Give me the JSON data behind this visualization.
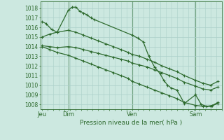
{
  "bg_color": "#cce8e0",
  "grid_color": "#aacfc8",
  "line_color": "#2d6a2d",
  "marker_color": "#2d6a2d",
  "title": "Pression niveau de la mer( hPa )",
  "ylim": [
    1007.5,
    1018.7
  ],
  "yticks": [
    1008,
    1009,
    1010,
    1011,
    1012,
    1013,
    1014,
    1015,
    1016,
    1017,
    1018
  ],
  "day_ticks": [
    0,
    14,
    48,
    82
  ],
  "day_labels": [
    "Jeu",
    "Dim",
    "Ven",
    "Sam"
  ],
  "day_lines": [
    14,
    48,
    82
  ],
  "xlim": [
    -1,
    96
  ],
  "series1": {
    "x": [
      0,
      2,
      5,
      8,
      14,
      16,
      18,
      20,
      22,
      24,
      26,
      28,
      48,
      51,
      54,
      57,
      60,
      63,
      65,
      67,
      69,
      72,
      76,
      82,
      85,
      88,
      91,
      94
    ],
    "y": [
      1016.6,
      1016.4,
      1015.8,
      1015.5,
      1017.8,
      1018.1,
      1018.1,
      1017.7,
      1017.5,
      1017.3,
      1017.0,
      1016.8,
      1015.2,
      1014.9,
      1014.5,
      1013.0,
      1011.9,
      1011.2,
      1010.5,
      1010.0,
      1009.7,
      1009.5,
      1008.1,
      1009.0,
      1008.0,
      1007.8,
      1007.9,
      1008.2
    ]
  },
  "series2": {
    "x": [
      0,
      4,
      8,
      14,
      18,
      22,
      26,
      30,
      34,
      38,
      42,
      46,
      48,
      52,
      56,
      60,
      64,
      68,
      72,
      76,
      82,
      86,
      90,
      94
    ],
    "y": [
      1015.0,
      1015.3,
      1015.5,
      1015.7,
      1015.5,
      1015.2,
      1014.9,
      1014.6,
      1014.3,
      1014.0,
      1013.7,
      1013.4,
      1013.2,
      1013.0,
      1012.7,
      1012.4,
      1012.0,
      1011.7,
      1011.4,
      1011.0,
      1010.5,
      1010.2,
      1010.0,
      1010.4
    ]
  },
  "series3": {
    "x": [
      0,
      4,
      8,
      14,
      18,
      22,
      26,
      30,
      34,
      38,
      42,
      46,
      48,
      52,
      56,
      60,
      64,
      68,
      72,
      76,
      82,
      86,
      90,
      94
    ],
    "y": [
      1014.1,
      1014.0,
      1013.9,
      1014.0,
      1013.9,
      1013.7,
      1013.5,
      1013.3,
      1013.1,
      1012.9,
      1012.7,
      1012.5,
      1012.3,
      1012.1,
      1011.9,
      1011.6,
      1011.3,
      1011.0,
      1010.7,
      1010.3,
      1009.9,
      1009.6,
      1009.5,
      1009.8
    ]
  },
  "series4": {
    "x": [
      0,
      4,
      8,
      14,
      18,
      22,
      26,
      30,
      34,
      38,
      42,
      46,
      48,
      52,
      56,
      60,
      64,
      68,
      72,
      76,
      82,
      86,
      90,
      94
    ],
    "y": [
      1014.0,
      1013.7,
      1013.4,
      1013.1,
      1012.8,
      1012.5,
      1012.2,
      1011.9,
      1011.6,
      1011.3,
      1011.0,
      1010.7,
      1010.4,
      1010.1,
      1009.8,
      1009.5,
      1009.2,
      1008.9,
      1008.6,
      1008.2,
      1007.9,
      1007.8,
      1007.8,
      1008.1
    ]
  }
}
